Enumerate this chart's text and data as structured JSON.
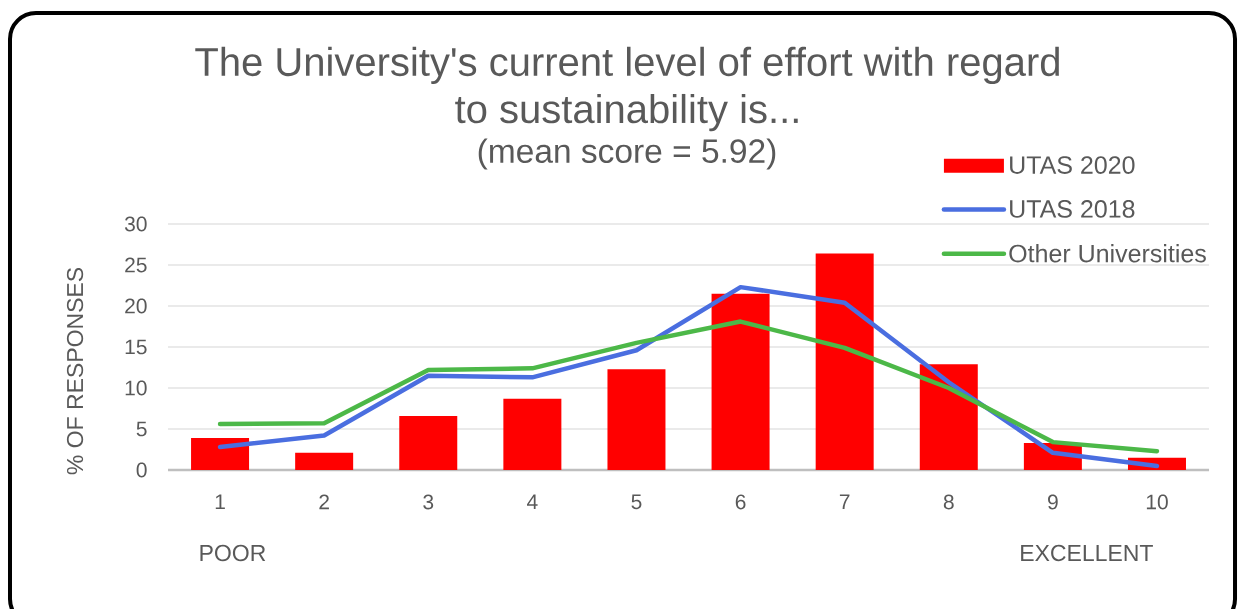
{
  "chart_data": {
    "type": "bar",
    "title": "The University's current level of effort with regard to sustainability is...",
    "subtitle": "(mean score = 5.92)",
    "ylabel": "% OF RESPONSES",
    "annotations": [
      "POOR",
      "EXCELLENT"
    ],
    "categories": [
      "1",
      "2",
      "3",
      "4",
      "5",
      "6",
      "7",
      "8",
      "9",
      "10"
    ],
    "series": [
      {
        "name": "UTAS 2020",
        "color": "#ff0000",
        "values": [
          3.9,
          2.1,
          6.6,
          8.7,
          12.3,
          21.5,
          26.4,
          12.9,
          3.3,
          1.5
        ]
      },
      {
        "name": "UTAS 2018",
        "type": "line",
        "color": "#4a6ee0",
        "values": [
          2.8,
          4.2,
          11.5,
          11.3,
          14.6,
          22.3,
          20.4,
          10.7,
          2.1,
          0.5
        ]
      },
      {
        "name": "Other Universities",
        "type": "line",
        "color": "#4cb848",
        "values": [
          5.6,
          5.7,
          12.2,
          12.4,
          15.5,
          18.1,
          14.9,
          10.0,
          3.4,
          2.3
        ]
      }
    ],
    "ylim": [
      0,
      30
    ],
    "yticks": [
      0,
      5,
      10,
      15,
      20,
      25,
      30
    ],
    "grid": "y",
    "legend": "top right"
  }
}
